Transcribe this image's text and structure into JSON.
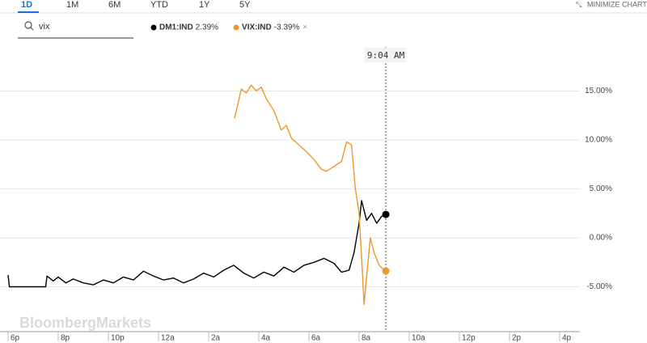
{
  "toolbar": {
    "tabs": [
      "1D",
      "1M",
      "6M",
      "YTD",
      "1Y",
      "5Y"
    ],
    "minimize": "MINIMIZE CHART",
    "search": "vix"
  },
  "watermark": "BloombergMarkets",
  "chart_data": {
    "type": "line",
    "crosshair": {
      "x": 15.067,
      "label": "9:04 AM"
    },
    "xlim": [
      0,
      22.8
    ],
    "xticks": [
      {
        "value": 0,
        "label": "6p"
      },
      {
        "value": 2,
        "label": "8p"
      },
      {
        "value": 4,
        "label": "10p"
      },
      {
        "value": 6,
        "label": "12a"
      },
      {
        "value": 8,
        "label": "2a"
      },
      {
        "value": 10,
        "label": "4a"
      },
      {
        "value": 12,
        "label": "6a"
      },
      {
        "value": 14,
        "label": "8a"
      },
      {
        "value": 16,
        "label": "10a"
      },
      {
        "value": 18,
        "label": "12p"
      },
      {
        "value": 20,
        "label": "2p"
      },
      {
        "value": 22,
        "label": "4p"
      }
    ],
    "ylim": [
      -9.5,
      20
    ],
    "yticks": [
      {
        "value": -5,
        "label": "-5.00%"
      },
      {
        "value": 0,
        "label": "0.00%"
      },
      {
        "value": 5,
        "label": "5.00%"
      },
      {
        "value": 10,
        "label": "10.00%"
      },
      {
        "value": 15,
        "label": "15.00%"
      }
    ],
    "grid": true,
    "series": [
      {
        "name": "DM1:IND",
        "change": "2.39%",
        "color": "#000000",
        "x": [
          0,
          0.05,
          1.5,
          1.55,
          1.8,
          2.0,
          2.3,
          2.6,
          3.0,
          3.4,
          3.8,
          4.2,
          4.6,
          5.0,
          5.4,
          5.8,
          6.2,
          6.6,
          7.0,
          7.4,
          7.8,
          8.2,
          8.6,
          9.0,
          9.4,
          9.8,
          10.2,
          10.6,
          11.0,
          11.4,
          11.8,
          12.2,
          12.6,
          13.0,
          13.3,
          13.6,
          13.8,
          14.0,
          14.1,
          14.3,
          14.5,
          14.7,
          14.9,
          15.067
        ],
        "values": [
          -3.8,
          -5.0,
          -5.0,
          -3.9,
          -4.4,
          -4.0,
          -4.6,
          -4.2,
          -4.6,
          -4.8,
          -4.3,
          -4.6,
          -4.0,
          -4.3,
          -3.4,
          -3.9,
          -4.3,
          -4.1,
          -4.6,
          -4.2,
          -3.6,
          -4.0,
          -3.3,
          -2.8,
          -3.6,
          -4.1,
          -3.5,
          -3.9,
          -3.0,
          -3.5,
          -2.8,
          -2.5,
          -2.1,
          -2.6,
          -3.5,
          -3.3,
          -1.5,
          1.5,
          3.8,
          1.8,
          2.5,
          1.5,
          2.2,
          2.39
        ]
      },
      {
        "name": "VIX:IND",
        "change": "-3.39%",
        "color": "#f0962a",
        "x": [
          9.03,
          9.15,
          9.3,
          9.5,
          9.7,
          9.9,
          10.1,
          10.3,
          10.6,
          10.9,
          11.1,
          11.3,
          11.6,
          11.9,
          12.2,
          12.5,
          12.7,
          13.0,
          13.3,
          13.5,
          13.7,
          13.85,
          14.0,
          14.1,
          14.2,
          14.3,
          14.45,
          14.6,
          14.8,
          15.0,
          15.067
        ],
        "values": [
          12.2,
          13.5,
          15.2,
          14.8,
          15.6,
          15.0,
          15.4,
          14.2,
          13.0,
          11.0,
          11.5,
          10.2,
          9.5,
          8.8,
          8.0,
          7.0,
          6.8,
          7.3,
          7.8,
          9.8,
          9.5,
          5.0,
          2.5,
          -2.0,
          -6.8,
          -4.0,
          0.0,
          -1.5,
          -2.8,
          -3.3,
          -3.39
        ]
      }
    ]
  }
}
